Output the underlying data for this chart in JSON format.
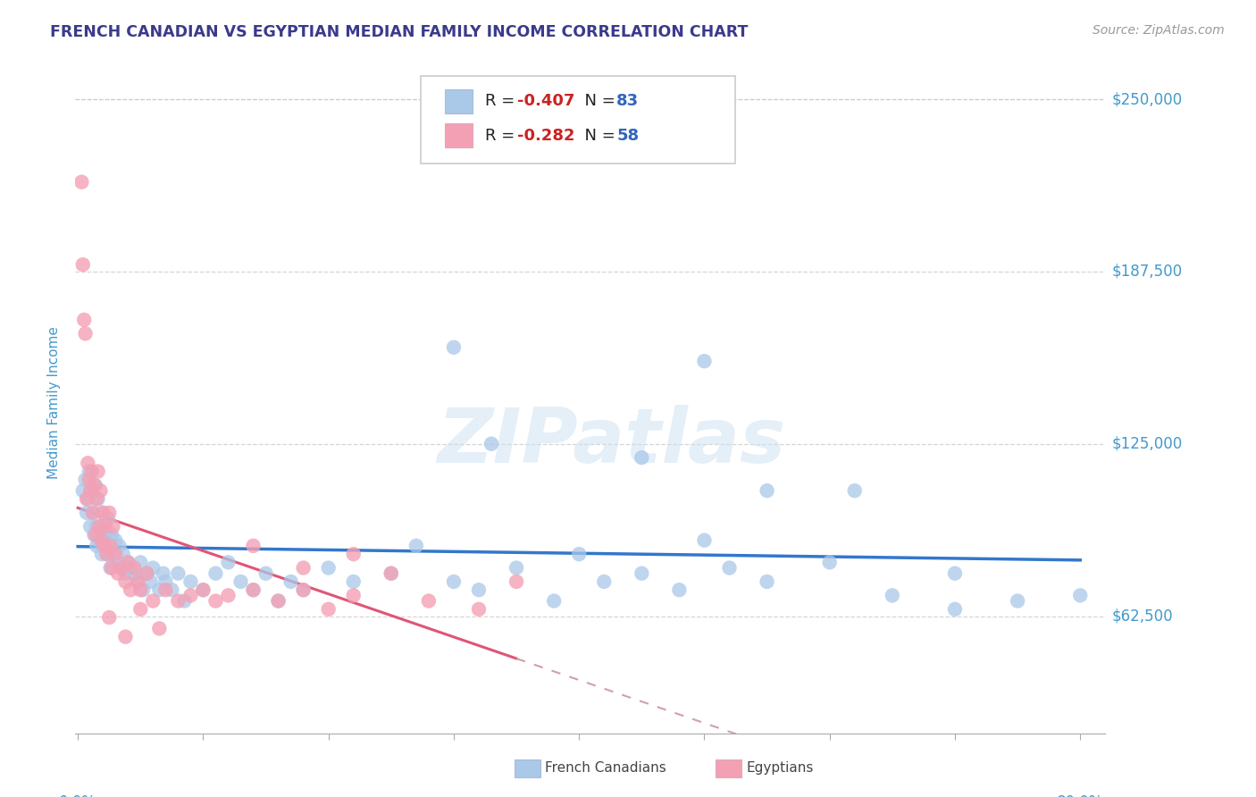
{
  "title": "FRENCH CANADIAN VS EGYPTIAN MEDIAN FAMILY INCOME CORRELATION CHART",
  "source": "Source: ZipAtlas.com",
  "ylabel": "Median Family Income",
  "ymin": 20000,
  "ymax": 260000,
  "xmin": -0.002,
  "xmax": 0.82,
  "r_blue": -0.407,
  "n_blue": 83,
  "r_pink": -0.282,
  "n_pink": 58,
  "blue_color": "#aac8e8",
  "blue_line_color": "#3377cc",
  "pink_color": "#f4a0b4",
  "pink_line_color": "#e05575",
  "pink_dash_color": "#e08898",
  "title_color": "#3a3a8c",
  "axis_label_color": "#4499cc",
  "legend_r_color": "#cc2222",
  "legend_n_color": "#3366bb",
  "grid_color": "#cccccc",
  "watermark": "ZIPatlas",
  "blue_scatter_x": [
    0.004,
    0.006,
    0.007,
    0.008,
    0.009,
    0.01,
    0.011,
    0.012,
    0.013,
    0.014,
    0.015,
    0.015,
    0.016,
    0.017,
    0.018,
    0.019,
    0.02,
    0.021,
    0.022,
    0.023,
    0.024,
    0.025,
    0.026,
    0.027,
    0.028,
    0.03,
    0.032,
    0.033,
    0.035,
    0.036,
    0.038,
    0.04,
    0.042,
    0.045,
    0.048,
    0.05,
    0.052,
    0.055,
    0.058,
    0.06,
    0.065,
    0.068,
    0.07,
    0.075,
    0.08,
    0.085,
    0.09,
    0.1,
    0.11,
    0.12,
    0.13,
    0.14,
    0.15,
    0.16,
    0.17,
    0.18,
    0.2,
    0.22,
    0.25,
    0.27,
    0.3,
    0.32,
    0.35,
    0.38,
    0.4,
    0.42,
    0.45,
    0.48,
    0.5,
    0.52,
    0.55,
    0.6,
    0.65,
    0.7,
    0.75,
    0.8,
    0.3,
    0.5,
    0.33,
    0.45,
    0.55,
    0.62,
    0.7
  ],
  "blue_scatter_y": [
    108000,
    112000,
    100000,
    105000,
    115000,
    95000,
    108000,
    100000,
    92000,
    110000,
    95000,
    88000,
    105000,
    90000,
    95000,
    85000,
    100000,
    90000,
    92000,
    85000,
    98000,
    88000,
    80000,
    92000,
    85000,
    90000,
    82000,
    88000,
    80000,
    85000,
    78000,
    82000,
    80000,
    78000,
    75000,
    82000,
    72000,
    78000,
    75000,
    80000,
    72000,
    78000,
    75000,
    72000,
    78000,
    68000,
    75000,
    72000,
    78000,
    82000,
    75000,
    72000,
    78000,
    68000,
    75000,
    72000,
    80000,
    75000,
    78000,
    88000,
    75000,
    72000,
    80000,
    68000,
    85000,
    75000,
    78000,
    72000,
    90000,
    80000,
    75000,
    82000,
    70000,
    78000,
    68000,
    70000,
    160000,
    155000,
    125000,
    120000,
    108000,
    108000,
    65000
  ],
  "pink_scatter_x": [
    0.003,
    0.004,
    0.005,
    0.006,
    0.007,
    0.008,
    0.009,
    0.01,
    0.011,
    0.012,
    0.013,
    0.014,
    0.015,
    0.016,
    0.017,
    0.018,
    0.019,
    0.02,
    0.021,
    0.022,
    0.023,
    0.025,
    0.026,
    0.027,
    0.028,
    0.03,
    0.032,
    0.035,
    0.038,
    0.04,
    0.042,
    0.045,
    0.048,
    0.05,
    0.055,
    0.06,
    0.07,
    0.08,
    0.09,
    0.1,
    0.11,
    0.12,
    0.14,
    0.16,
    0.18,
    0.2,
    0.22,
    0.25,
    0.28,
    0.32,
    0.35,
    0.14,
    0.18,
    0.22,
    0.05,
    0.065,
    0.038,
    0.025
  ],
  "pink_scatter_y": [
    220000,
    190000,
    170000,
    165000,
    105000,
    118000,
    112000,
    108000,
    115000,
    100000,
    110000,
    92000,
    105000,
    115000,
    95000,
    108000,
    90000,
    100000,
    88000,
    95000,
    85000,
    100000,
    88000,
    80000,
    95000,
    85000,
    78000,
    80000,
    75000,
    82000,
    72000,
    80000,
    75000,
    72000,
    78000,
    68000,
    72000,
    68000,
    70000,
    72000,
    68000,
    70000,
    72000,
    68000,
    80000,
    65000,
    70000,
    78000,
    68000,
    65000,
    75000,
    88000,
    72000,
    85000,
    65000,
    58000,
    55000,
    62000
  ]
}
